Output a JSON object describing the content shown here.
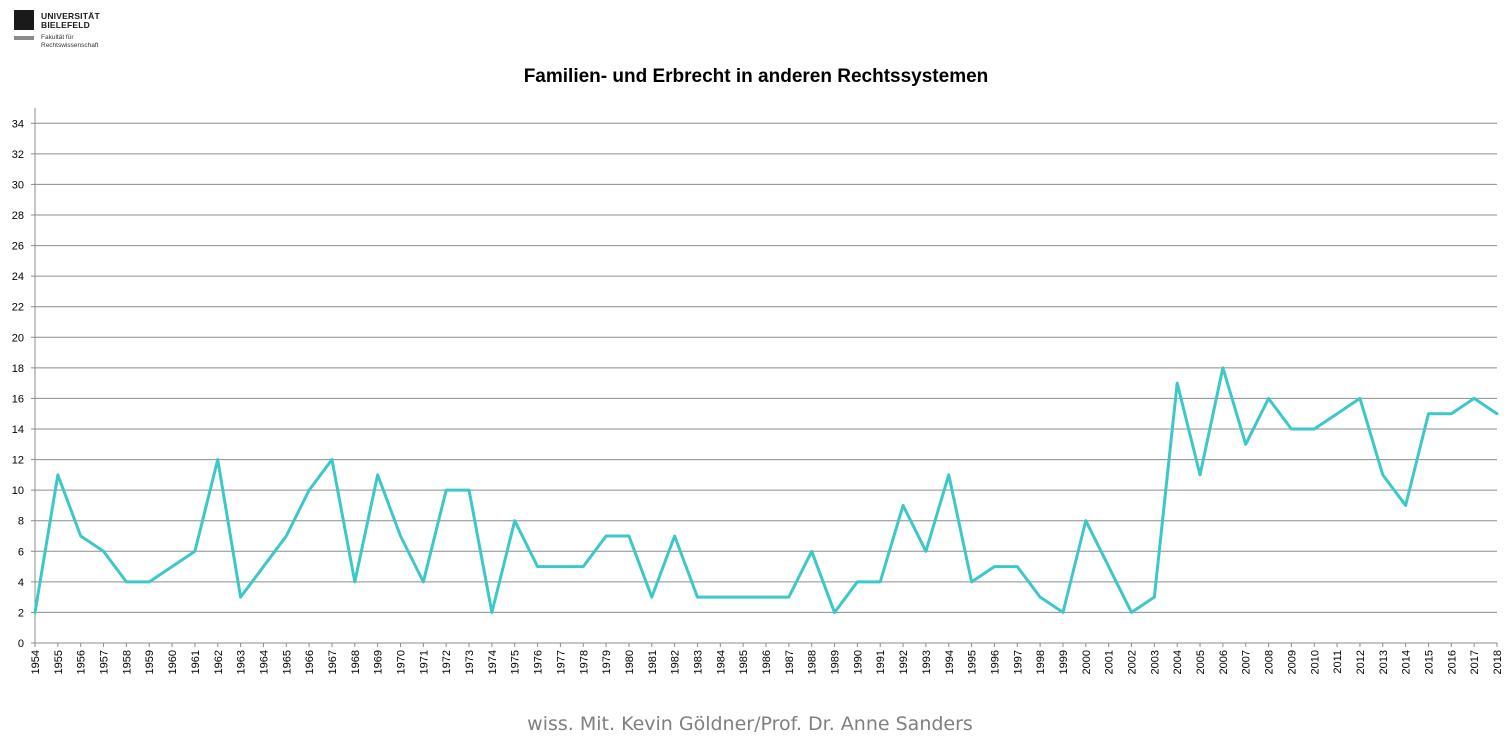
{
  "logo": {
    "university": [
      "UNIVERSITÄT",
      "BIELEFELD"
    ],
    "faculty": [
      "Fakultät für",
      "Rechtswissenschaft"
    ]
  },
  "footer": "wiss. Mit. Kevin Göldner/Prof.  Dr. Anne Sanders",
  "chart_data": {
    "type": "line",
    "title": "Familien- und Erbrecht in anderen Rechtssystemen",
    "xlabel": "",
    "ylabel": "",
    "x": [
      "1954",
      "1955",
      "1956",
      "1957",
      "1958",
      "1959",
      "1960",
      "1961",
      "1962",
      "1963",
      "1964",
      "1965",
      "1966",
      "1967",
      "1968",
      "1969",
      "1970",
      "1971",
      "1972",
      "1973",
      "1974",
      "1975",
      "1976",
      "1977",
      "1978",
      "1979",
      "1980",
      "1981",
      "1982",
      "1983",
      "1984",
      "1985",
      "1986",
      "1987",
      "1988",
      "1989",
      "1990",
      "1991",
      "1992",
      "1993",
      "1994",
      "1995",
      "1996",
      "1997",
      "1998",
      "1999",
      "2000",
      "2001",
      "2002",
      "2003",
      "2004",
      "2005",
      "2006",
      "2007",
      "2008",
      "2009",
      "2010",
      "2011",
      "2012",
      "2013",
      "2014",
      "2015",
      "2016",
      "2017",
      "2018"
    ],
    "series": [
      {
        "color": "#3cc8c8",
        "values": [
          2,
          11,
          7,
          6,
          4,
          4,
          5,
          6,
          12,
          3,
          5,
          7,
          10,
          12,
          4,
          11,
          7,
          4,
          10,
          10,
          2,
          8,
          5,
          5,
          5,
          7,
          7,
          3,
          7,
          3,
          3,
          3,
          3,
          3,
          6,
          2,
          4,
          4,
          9,
          6,
          11,
          4,
          5,
          5,
          3,
          2,
          8,
          5,
          2,
          3,
          17,
          11,
          18,
          13,
          16,
          14,
          14,
          15,
          16,
          11,
          9,
          15,
          15,
          16,
          15
        ]
      }
    ],
    "yticks": [
      "0",
      "2",
      "4",
      "6",
      "8",
      "10",
      "12",
      "14",
      "16",
      "18",
      "20",
      "22",
      "24",
      "26",
      "28",
      "30",
      "32",
      "34"
    ],
    "ylim": [
      0,
      35
    ],
    "grid": true,
    "legend": "none"
  }
}
